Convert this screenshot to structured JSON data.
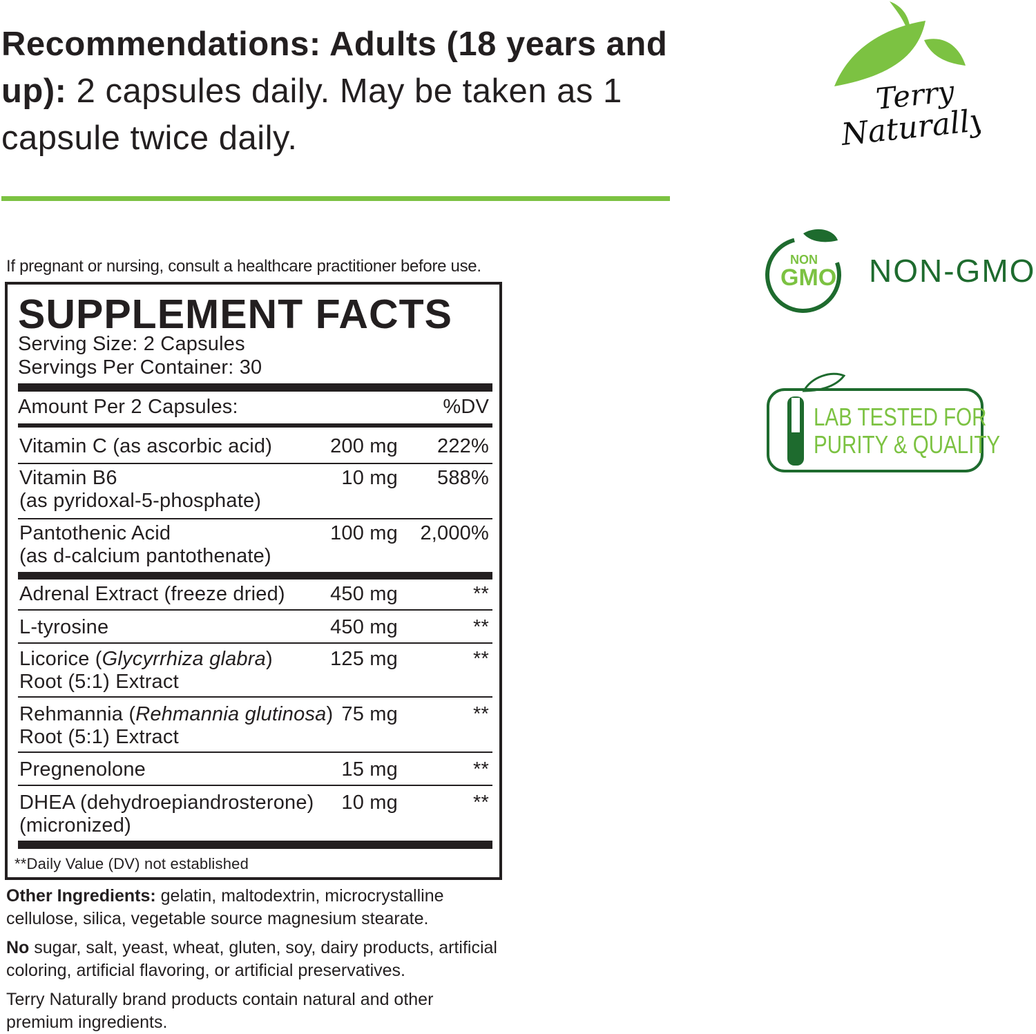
{
  "colors": {
    "accent": "#7cc242",
    "dark_green": "#1e6b2e",
    "text": "#231f20"
  },
  "recommendations": {
    "label": "Recommendations: Adults (18 years and up):",
    "text": " 2 capsules daily. May be taken as 1 capsule twice daily."
  },
  "warning": "If pregnant or nursing, consult a healthcare practitioner before use.",
  "facts": {
    "title": "SUPPLEMENT FACTS",
    "serving_size": "Serving Size: 2 Capsules",
    "servings_per_container": "Servings Per Container: 30",
    "amount_header": "Amount Per 2 Capsules:",
    "dv_header": "%DV",
    "rows": [
      {
        "name": "Vitamin C (as ascorbic acid)",
        "amount": "200 mg",
        "dv": "222%"
      },
      {
        "name": "Vitamin B6",
        "name2": "(as pyridoxal-5-phosphate)",
        "amount": "10 mg",
        "dv": "588%"
      },
      {
        "name": "Pantothenic Acid",
        "name2": "(as d-calcium pantothenate)",
        "amount": "100 mg",
        "dv": "2,000%"
      },
      {
        "name": "Adrenal Extract (freeze dried)",
        "amount": "450 mg",
        "dv": "**"
      },
      {
        "name": "L-tyrosine",
        "amount": "450 mg",
        "dv": "**"
      },
      {
        "name": "Licorice (",
        "italic": "Glycyrrhiza glabra",
        "name_end": ")",
        "name2": "Root (5:1) Extract",
        "amount": "125 mg",
        "dv": "**"
      },
      {
        "name": "Rehmannia (",
        "italic": "Rehmannia glutinosa",
        "name_end": ")",
        "name2": "Root (5:1) Extract",
        "amount": "75 mg",
        "dv": "**"
      },
      {
        "name": "Pregnenolone",
        "amount": "15 mg",
        "dv": "**"
      },
      {
        "name": "DHEA (dehydroepiandrosterone)",
        "name2": "(micronized)",
        "amount": "10 mg",
        "dv": "**"
      }
    ],
    "footnote": "**Daily Value (DV) not established"
  },
  "other": {
    "label": "Other Ingredients:",
    "text": " gelatin, maltodextrin, microcrystalline cellulose, silica, vegetable source magnesium stearate.",
    "no_label": "No",
    "no_text": " sugar, salt, yeast, wheat, gluten, soy, dairy products, artificial coloring, artificial flavoring, or artificial preservatives.",
    "brand_note": "Terry Naturally brand products contain natural and other premium ingredients."
  },
  "logos": {
    "brand": "Terry Naturally",
    "non_gmo_badge_top": "NON",
    "non_gmo_badge_bottom": "GMO",
    "non_gmo_label": "NON-GMO",
    "lab_line1": "LAB TESTED FOR",
    "lab_line2": "PURITY & QUALITY"
  }
}
